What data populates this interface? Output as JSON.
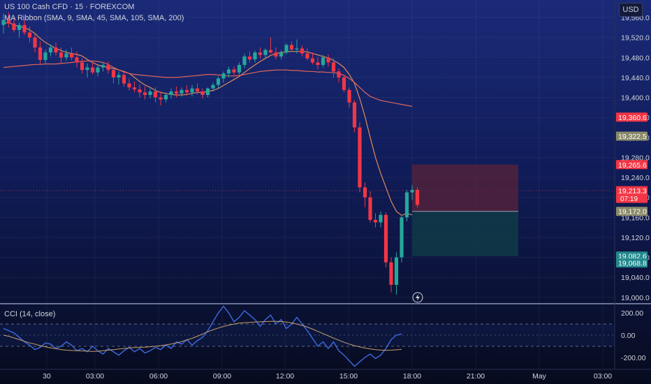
{
  "header": {
    "symbol_line": "US 100 Cash CFD · 15 · FOREXCOM",
    "indicator_line": "MA Ribbon (SMA, 9, SMA, 45, SMA, 105, SMA, 200)",
    "currency_button": "USD"
  },
  "oscillator": {
    "label": "CCI (14, close)"
  },
  "price_badges": [
    {
      "text": "19,360.6",
      "price": 19360.6,
      "bg": "#f23645",
      "fg": "#ffffff"
    },
    {
      "text": "19,322.5",
      "price": 19322.5,
      "bg": "#8a8a6a",
      "fg": "#ffffff"
    },
    {
      "text": "19,265.6",
      "price": 19265.6,
      "bg": "#f23645",
      "fg": "#ffffff"
    },
    {
      "text": "19,213.3",
      "price": 19213.3,
      "bg": "#f23645",
      "fg": "#ffffff",
      "sub": "07:19"
    },
    {
      "text": "19,172.0",
      "price": 19172.0,
      "bg": "#8a8a6a",
      "fg": "#ffffff"
    },
    {
      "text": "19,082.6",
      "price": 19082.6,
      "bg": "#22898d",
      "fg": "#ffffff"
    },
    {
      "text": "19,068.8",
      "price": 19068.8,
      "bg": "#22898d",
      "fg": "#ffffff"
    }
  ],
  "colors": {
    "up": "#26a69a",
    "down": "#f23645",
    "ma_fast": "#e0885a",
    "ma_slow": "#e0655a",
    "cci": "#3d6be0",
    "cci_signal": "#c8a070",
    "short_risk": "#5a2338",
    "short_target": "#0f3a46",
    "background": "#0b1230"
  },
  "chart_data": [
    {
      "type": "candlestick",
      "title": "US 100 Cash CFD · 15 · FOREXCOM",
      "x_ticks": [
        "30",
        "03:00",
        "06:00",
        "09:00",
        "12:00",
        "15:00",
        "18:00",
        "21:00",
        "May",
        "03:00"
      ],
      "y_ticks": [
        "19,560.0",
        "19,520.0",
        "19,480.0",
        "19,440.0",
        "19,400.0",
        "19,360.0",
        "19,320.0",
        "19,280.0",
        "19,240.0",
        "19,200.0",
        "19,160.0",
        "19,120.0",
        "19,080.0",
        "19,040.0",
        "19,000.0"
      ],
      "ylim": [
        18990,
        19595
      ],
      "grid": true,
      "candles_ohlc": [
        [
          19545,
          19568,
          19528,
          19555
        ],
        [
          19555,
          19570,
          19540,
          19548
        ],
        [
          19548,
          19562,
          19530,
          19535
        ],
        [
          19535,
          19550,
          19520,
          19545
        ],
        [
          19545,
          19556,
          19525,
          19530
        ],
        [
          19530,
          19542,
          19510,
          19520
        ],
        [
          19520,
          19528,
          19490,
          19500
        ],
        [
          19500,
          19512,
          19466,
          19475
        ],
        [
          19475,
          19496,
          19468,
          19490
        ],
        [
          19490,
          19506,
          19482,
          19500
        ],
        [
          19500,
          19510,
          19484,
          19490
        ],
        [
          19490,
          19500,
          19468,
          19480
        ],
        [
          19480,
          19496,
          19474,
          19488
        ],
        [
          19488,
          19500,
          19475,
          19480
        ],
        [
          19480,
          19492,
          19460,
          19470
        ],
        [
          19470,
          19478,
          19448,
          19455
        ],
        [
          19455,
          19468,
          19440,
          19460
        ],
        [
          19460,
          19470,
          19446,
          19450
        ],
        [
          19450,
          19465,
          19442,
          19460
        ],
        [
          19460,
          19470,
          19452,
          19465
        ],
        [
          19465,
          19472,
          19448,
          19455
        ],
        [
          19455,
          19460,
          19428,
          19440
        ],
        [
          19440,
          19452,
          19426,
          19445
        ],
        [
          19445,
          19450,
          19422,
          19428
        ],
        [
          19428,
          19438,
          19414,
          19420
        ],
        [
          19420,
          19432,
          19410,
          19416
        ],
        [
          19416,
          19426,
          19400,
          19410
        ],
        [
          19410,
          19422,
          19396,
          19405
        ],
        [
          19405,
          19418,
          19398,
          19412
        ],
        [
          19412,
          19420,
          19390,
          19400
        ],
        [
          19400,
          19412,
          19384,
          19396
        ],
        [
          19396,
          19410,
          19390,
          19405
        ],
        [
          19405,
          19418,
          19398,
          19412
        ],
        [
          19412,
          19422,
          19400,
          19408
        ],
        [
          19408,
          19420,
          19402,
          19415
        ],
        [
          19415,
          19424,
          19404,
          19410
        ],
        [
          19410,
          19425,
          19402,
          19418
        ],
        [
          19418,
          19428,
          19406,
          19412
        ],
        [
          19412,
          19418,
          19398,
          19405
        ],
        [
          19405,
          19420,
          19400,
          19418
        ],
        [
          19418,
          19430,
          19412,
          19425
        ],
        [
          19425,
          19442,
          19418,
          19438
        ],
        [
          19438,
          19452,
          19430,
          19448
        ],
        [
          19448,
          19462,
          19440,
          19456
        ],
        [
          19456,
          19462,
          19444,
          19450
        ],
        [
          19450,
          19470,
          19446,
          19465
        ],
        [
          19465,
          19488,
          19458,
          19482
        ],
        [
          19482,
          19492,
          19470,
          19476
        ],
        [
          19476,
          19494,
          19470,
          19490
        ],
        [
          19490,
          19500,
          19478,
          19485
        ],
        [
          19485,
          19498,
          19478,
          19495
        ],
        [
          19495,
          19520,
          19488,
          19490
        ],
        [
          19490,
          19500,
          19476,
          19482
        ],
        [
          19482,
          19494,
          19476,
          19490
        ],
        [
          19490,
          19508,
          19486,
          19505
        ],
        [
          19505,
          19512,
          19492,
          19496
        ],
        [
          19496,
          19516,
          19488,
          19498
        ],
        [
          19498,
          19504,
          19482,
          19488
        ],
        [
          19488,
          19498,
          19474,
          19478
        ],
        [
          19478,
          19490,
          19466,
          19470
        ],
        [
          19470,
          19480,
          19456,
          19465
        ],
        [
          19465,
          19485,
          19460,
          19480
        ],
        [
          19480,
          19486,
          19462,
          19470
        ],
        [
          19470,
          19478,
          19440,
          19452
        ],
        [
          19452,
          19458,
          19430,
          19440
        ],
        [
          19440,
          19446,
          19410,
          19415
        ],
        [
          19415,
          19420,
          19380,
          19390
        ],
        [
          19390,
          19395,
          19330,
          19340
        ],
        [
          19340,
          19350,
          19210,
          19220
        ],
        [
          19220,
          19230,
          19180,
          19200
        ],
        [
          19200,
          19212,
          19150,
          19155
        ],
        [
          19155,
          19168,
          19140,
          19150
        ],
        [
          19150,
          19172,
          19140,
          19165
        ],
        [
          19165,
          19170,
          19060,
          19070
        ],
        [
          19070,
          19080,
          19010,
          19025
        ],
        [
          19025,
          19090,
          19005,
          19080
        ],
        [
          19080,
          19165,
          19070,
          19160
        ],
        [
          19160,
          19215,
          19152,
          19210
        ],
        [
          19210,
          19225,
          19195,
          19215
        ],
        [
          19215,
          19220,
          19180,
          19185
        ]
      ],
      "series": [
        {
          "name": "SMA 9",
          "values": [
            19548,
            19550,
            19545,
            19542,
            19540,
            19535,
            19528,
            19518,
            19510,
            19504,
            19498,
            19494,
            19490,
            19488,
            19486,
            19483,
            19476,
            19470,
            19465,
            19462,
            19460,
            19458,
            19455,
            19452,
            19448,
            19440,
            19432,
            19425,
            19420,
            19414,
            19410,
            19408,
            19406,
            19405,
            19405,
            19406,
            19408,
            19410,
            19410,
            19412,
            19414,
            19418,
            19424,
            19430,
            19436,
            19442,
            19450,
            19458,
            19465,
            19472,
            19478,
            19484,
            19488,
            19490,
            19491,
            19492,
            19492,
            19492,
            19491,
            19488,
            19485,
            19482,
            19479,
            19474,
            19468,
            19460,
            19446,
            19428,
            19398,
            19362,
            19320,
            19280,
            19248,
            19220,
            19192,
            19172,
            19164,
            19168,
            19165
          ]
        },
        {
          "name": "SMA 45",
          "values": [
            19460,
            19461,
            19462,
            19463,
            19464,
            19465,
            19466,
            19466,
            19467,
            19467,
            19467,
            19468,
            19469,
            19470,
            19471,
            19472,
            19473,
            19473,
            19472,
            19470,
            19466,
            19460,
            19455,
            19451,
            19448,
            19446,
            19445,
            19444,
            19443,
            19442,
            19441,
            19440,
            19440,
            19440,
            19441,
            19442,
            19443,
            19444,
            19445,
            19446,
            19446,
            19445,
            19444,
            19443,
            19443,
            19444,
            19446,
            19448,
            19450,
            19452,
            19453,
            19454,
            19455,
            19455,
            19455,
            19454,
            19454,
            19453,
            19452,
            19452,
            19451,
            19451,
            19450,
            19450,
            19448,
            19444,
            19438,
            19430,
            19420,
            19410,
            19402,
            19398,
            19394,
            19392,
            19390,
            19388,
            19386,
            19384,
            19382
          ]
        }
      ],
      "short_position": {
        "entry": 19172.0,
        "stop": 19265.6,
        "target": 19082.6
      }
    },
    {
      "type": "line",
      "title": "CCI (14, close)",
      "y_ticks": [
        "200.00",
        "0.00",
        "-200.00"
      ],
      "ylim": [
        -295,
        270
      ],
      "series": [
        {
          "name": "CCI",
          "values": [
            60,
            40,
            20,
            -20,
            -60,
            -90,
            -130,
            -110,
            -70,
            -80,
            -120,
            -100,
            -60,
            -90,
            -140,
            -120,
            -150,
            -100,
            -140,
            -170,
            -120,
            -150,
            -180,
            -140,
            -110,
            -150,
            -120,
            -160,
            -140,
            -110,
            -130,
            -90,
            -120,
            -60,
            -80,
            -40,
            -90,
            -50,
            -20,
            40,
            120,
            200,
            260,
            200,
            120,
            160,
            220,
            180,
            140,
            80,
            140,
            180,
            100,
            140,
            60,
            100,
            160,
            100,
            40,
            -30,
            -100,
            -60,
            -120,
            -60,
            -140,
            -180,
            -230,
            -280,
            -240,
            -200,
            -170,
            -210,
            -180,
            -120,
            -40,
            0,
            10
          ]
        },
        {
          "name": "signal",
          "values": [
            0,
            -10,
            -25,
            -40,
            -55,
            -70,
            -80,
            -95,
            -105,
            -115,
            -122,
            -130,
            -135,
            -138,
            -140,
            -142,
            -144,
            -146,
            -145,
            -140,
            -135,
            -130,
            -125,
            -120,
            -115,
            -112,
            -110,
            -108,
            -104,
            -100,
            -95,
            -88,
            -80,
            -70,
            -58,
            -44,
            -28,
            -10,
            10,
            30,
            48,
            64,
            78,
            90,
            100,
            108,
            112,
            115,
            118,
            120,
            122,
            124,
            124,
            122,
            118,
            110,
            100,
            88,
            72,
            54,
            34,
            14,
            -6,
            -26,
            -46,
            -64,
            -80,
            -94,
            -106,
            -116,
            -124,
            -130,
            -134,
            -136,
            -135,
            -132,
            -128
          ]
        }
      ]
    }
  ]
}
